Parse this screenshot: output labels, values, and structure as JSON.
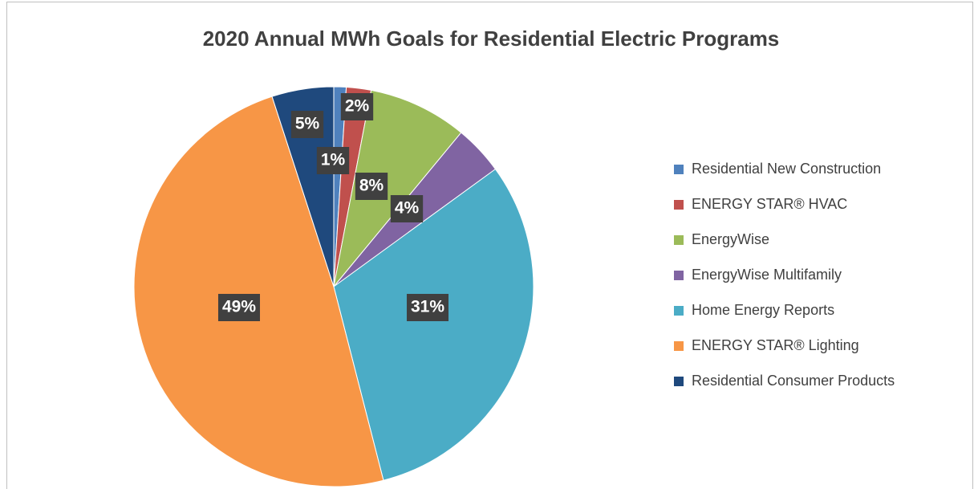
{
  "chart_data": {
    "type": "pie",
    "title": "2020 Annual MWh Goals for Residential Electric Programs",
    "categories": [
      "Residential New Construction",
      "ENERGY STAR® HVAC",
      "EnergyWise",
      "EnergyWise Multifamily",
      "Home Energy Reports",
      "ENERGY STAR® Lighting",
      "Residential Consumer Products"
    ],
    "values": [
      1,
      2,
      8,
      4,
      31,
      49,
      5
    ],
    "value_labels": [
      "1%",
      "2%",
      "8%",
      "4%",
      "31%",
      "49%",
      "5%"
    ],
    "colors": [
      "#4f81bd",
      "#c0504d",
      "#9bbb59",
      "#8064a2",
      "#4bacc6",
      "#f79646",
      "#1f497d"
    ],
    "legend": "right"
  }
}
